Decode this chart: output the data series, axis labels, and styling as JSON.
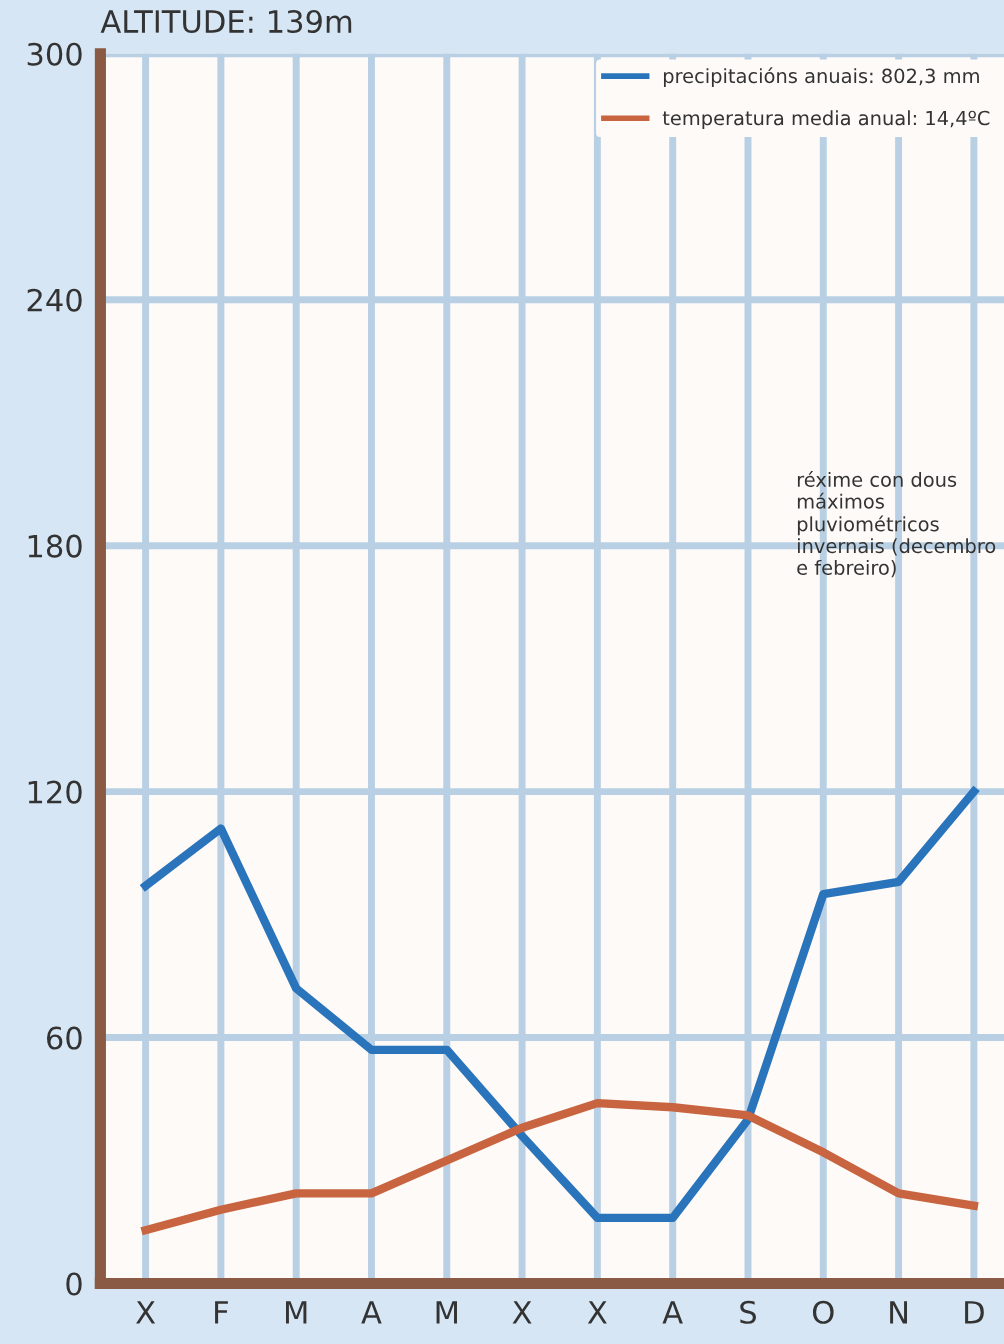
{
  "chart_data": {
    "type": "line",
    "title": "ALTITUDE: 139m",
    "categories": [
      "X",
      "F",
      "M",
      "A",
      "M",
      "X",
      "X",
      "A",
      "S",
      "O",
      "N",
      "D"
    ],
    "series": [
      {
        "name": "precipitacións anuais: 802,3 mm",
        "color": "#2a74bb",
        "values": [
          97,
          111,
          72,
          57,
          57,
          36,
          16,
          16,
          40,
          95,
          98,
          120
        ]
      },
      {
        "name": "temperatura media anual: 14,4ºC",
        "color": "#c8643f",
        "values": [
          13,
          18,
          22,
          22,
          30,
          38,
          44,
          43,
          41,
          32,
          22,
          19
        ]
      }
    ],
    "ylim": [
      0,
      300
    ],
    "yticks": [
      0,
      60,
      120,
      180,
      240,
      300
    ],
    "grid": true,
    "legend": "top right",
    "annotations": [
      "réxime con dous máximos pluviométricos invernais (decembro e febreiro)"
    ]
  }
}
